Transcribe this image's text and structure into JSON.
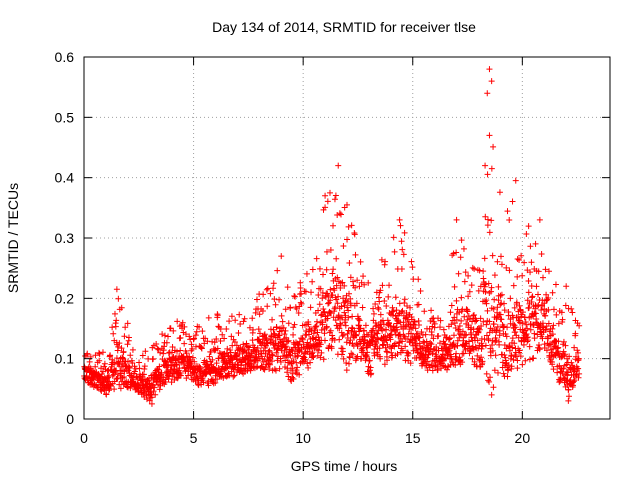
{
  "chart_data": {
    "type": "scatter",
    "title": "Day 134 of 2014, SRMTID for receiver tlse",
    "xlabel": "GPS time / hours",
    "ylabel": "SRMTID / TECUs",
    "xlim": [
      0,
      24
    ],
    "ylim": [
      0,
      0.6
    ],
    "xticks": [
      0,
      5,
      10,
      15,
      20
    ],
    "xtick_labels": [
      "0",
      "5",
      "10",
      "15",
      "20"
    ],
    "yticks": [
      0,
      0.1,
      0.2,
      0.3,
      0.4,
      0.5,
      0.6
    ],
    "ytick_labels": [
      "0",
      "0.1",
      "0.2",
      "0.3",
      "0.4",
      "0.5",
      "0.6"
    ],
    "grid": true,
    "marker": "+",
    "color": "#ff0000",
    "series": [
      {
        "name": "SRMTID",
        "envelope": {
          "description": "approximate value range per time bin read from the plot (hours, min, max)",
          "bins": [
            [
              0.0,
              0.06,
              0.13
            ],
            [
              0.5,
              0.05,
              0.12
            ],
            [
              1.0,
              0.04,
              0.11
            ],
            [
              1.5,
              0.05,
              0.21
            ],
            [
              2.0,
              0.05,
              0.16
            ],
            [
              2.5,
              0.04,
              0.12
            ],
            [
              3.0,
              0.03,
              0.12
            ],
            [
              3.5,
              0.05,
              0.14
            ],
            [
              4.0,
              0.06,
              0.18
            ],
            [
              4.5,
              0.07,
              0.16
            ],
            [
              5.0,
              0.06,
              0.15
            ],
            [
              5.5,
              0.05,
              0.16
            ],
            [
              6.0,
              0.06,
              0.18
            ],
            [
              6.5,
              0.07,
              0.17
            ],
            [
              7.0,
              0.07,
              0.18
            ],
            [
              7.5,
              0.08,
              0.16
            ],
            [
              8.0,
              0.08,
              0.21
            ],
            [
              8.5,
              0.08,
              0.22
            ],
            [
              9.0,
              0.08,
              0.27
            ],
            [
              9.5,
              0.06,
              0.2
            ],
            [
              10.0,
              0.08,
              0.24
            ],
            [
              10.5,
              0.09,
              0.26
            ],
            [
              11.0,
              0.1,
              0.37
            ],
            [
              11.5,
              0.1,
              0.42
            ],
            [
              12.0,
              0.08,
              0.35
            ],
            [
              12.5,
              0.1,
              0.3
            ],
            [
              13.0,
              0.07,
              0.24
            ],
            [
              13.5,
              0.09,
              0.26
            ],
            [
              14.0,
              0.09,
              0.31
            ],
            [
              14.5,
              0.1,
              0.33
            ],
            [
              15.0,
              0.09,
              0.28
            ],
            [
              15.5,
              0.08,
              0.21
            ],
            [
              16.0,
              0.07,
              0.18
            ],
            [
              16.5,
              0.08,
              0.19
            ],
            [
              17.0,
              0.09,
              0.33
            ],
            [
              17.5,
              0.09,
              0.29
            ],
            [
              18.0,
              0.08,
              0.25
            ],
            [
              18.5,
              0.04,
              0.58
            ],
            [
              19.0,
              0.07,
              0.37
            ],
            [
              19.5,
              0.07,
              0.39
            ],
            [
              20.0,
              0.09,
              0.33
            ],
            [
              20.5,
              0.1,
              0.33
            ],
            [
              21.0,
              0.12,
              0.27
            ],
            [
              21.5,
              0.07,
              0.24
            ],
            [
              22.0,
              0.03,
              0.22
            ],
            [
              22.5,
              0.06,
              0.16
            ]
          ]
        },
        "peaks": [
          {
            "x": 1.5,
            "y": 0.215
          },
          {
            "x": 9.0,
            "y": 0.27
          },
          {
            "x": 11.0,
            "y": 0.37
          },
          {
            "x": 11.6,
            "y": 0.42
          },
          {
            "x": 12.0,
            "y": 0.355
          },
          {
            "x": 14.4,
            "y": 0.33
          },
          {
            "x": 17.0,
            "y": 0.33
          },
          {
            "x": 18.5,
            "y": 0.58
          },
          {
            "x": 18.6,
            "y": 0.56
          },
          {
            "x": 18.4,
            "y": 0.54
          },
          {
            "x": 18.5,
            "y": 0.47
          },
          {
            "x": 18.3,
            "y": 0.42
          },
          {
            "x": 19.7,
            "y": 0.395
          },
          {
            "x": 20.8,
            "y": 0.33
          },
          {
            "x": 22.0,
            "y": 0.22
          },
          {
            "x": 18.6,
            "y": 0.04
          },
          {
            "x": 3.1,
            "y": 0.025
          },
          {
            "x": 22.1,
            "y": 0.03
          }
        ],
        "x_end": 22.6
      }
    ]
  }
}
